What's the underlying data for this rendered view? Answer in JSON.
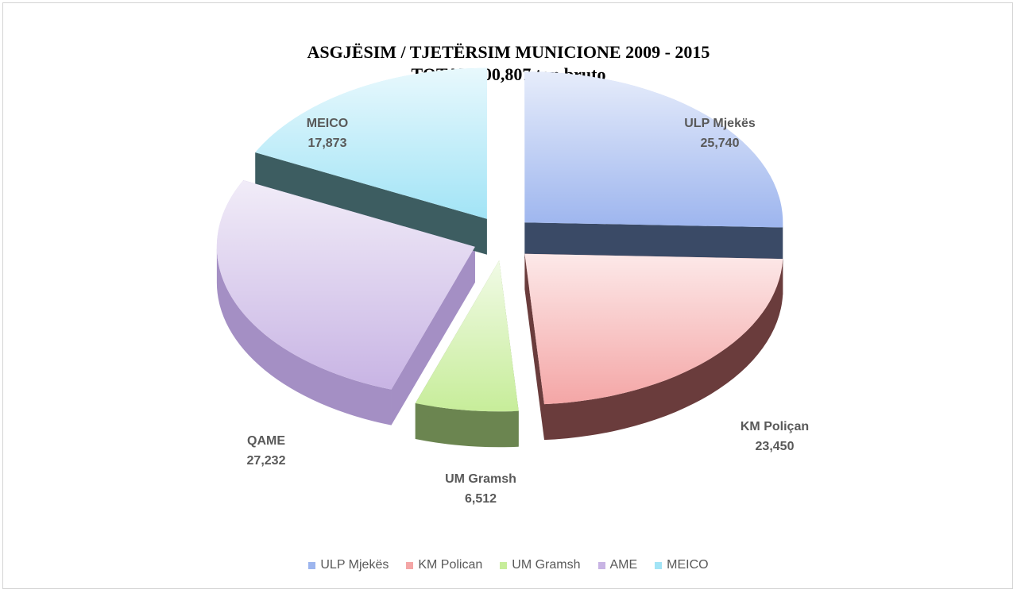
{
  "chart_data": {
    "type": "pie",
    "title": "ASGJËSIM / TJETËRSIM MUNICIONE 2009 - 2015",
    "subtitle": "TOTAL 100,807 ton bruto",
    "slices": [
      {
        "name": "ULP Mjekës",
        "value": 25.74,
        "label": "25,740",
        "color": "#9db5ee",
        "side": "#3a4a66"
      },
      {
        "name": "KM Poliçan",
        "value": 23.45,
        "label": "23,450",
        "color": "#f4a6a6",
        "side": "#6a3c3c"
      },
      {
        "name": "UM Gramsh",
        "value": 6.512,
        "label": "6,512",
        "color": "#c7ed9a",
        "side": "#6b8550"
      },
      {
        "name": "QAME",
        "value": 27.232,
        "label": "27,232",
        "color": "#c8b4e4",
        "side": "#a48fc4"
      },
      {
        "name": "MEICO",
        "value": 17.873,
        "label": "17,873",
        "color": "#a2e4f6",
        "side": "#3d5d61"
      }
    ],
    "legend": {
      "position": "bottom",
      "entries": [
        "ULP Mjekës",
        "KM Polican",
        "UM Gramsh",
        "AME",
        "MEICO"
      ]
    }
  }
}
